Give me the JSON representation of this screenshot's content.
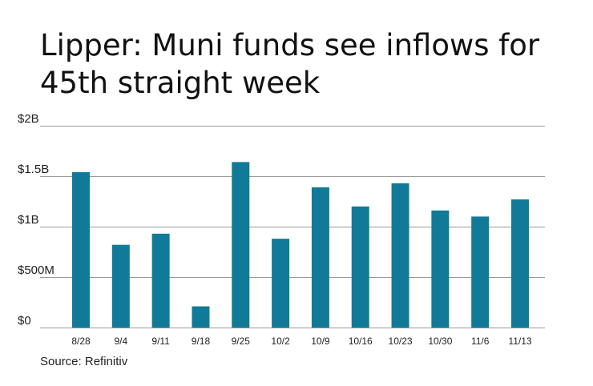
{
  "chart_data": {
    "type": "bar",
    "title": "Lipper: Muni funds see inflows for 45th straight week",
    "categories": [
      "8/28",
      "9/4",
      "9/11",
      "9/18",
      "9/25",
      "10/2",
      "10/9",
      "10/16",
      "10/23",
      "10/30",
      "11/6",
      "11/13"
    ],
    "values": [
      1.54,
      0.82,
      0.93,
      0.21,
      1.64,
      0.88,
      1.39,
      1.2,
      1.43,
      1.16,
      1.1,
      1.27
    ],
    "unit": "billions of dollars",
    "ylim": [
      0,
      2
    ],
    "yticks": [
      {
        "value": 0,
        "label": "$0"
      },
      {
        "value": 0.5,
        "label": "$500M"
      },
      {
        "value": 1,
        "label": "$1B"
      },
      {
        "value": 1.5,
        "label": "$1.5B"
      },
      {
        "value": 2,
        "label": "$2B"
      }
    ],
    "grid": true,
    "bar_color": "#117a98",
    "xlabel": "",
    "ylabel": "",
    "source": "Source: Refinitiv"
  }
}
